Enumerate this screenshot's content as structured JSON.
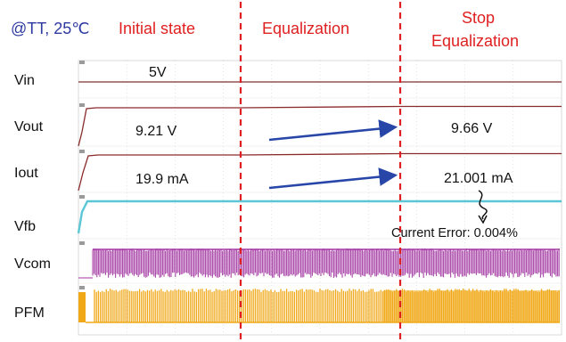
{
  "header": {
    "condition": "@TT, 25℃",
    "phase_initial": "Initial state",
    "phase_equalization": "Equalization",
    "phase_stop_line1": "Stop",
    "phase_stop_line2": "Equalization"
  },
  "channels": [
    {
      "name": "Vin",
      "value_label": "5V",
      "value_label_after": "",
      "color": "#7a3030"
    },
    {
      "name": "Vout",
      "value_label": "9.21 V",
      "value_label_after": "9.66 V",
      "color": "#8a2a2a"
    },
    {
      "name": "Iout",
      "value_label": "19.9 mA",
      "value_label_after": "21.001 mA",
      "color": "#8a2a2a"
    },
    {
      "name": "Vfb",
      "value_label": "",
      "value_label_after": "",
      "color": "#5bc6d6"
    },
    {
      "name": "Vcom",
      "value_label": "",
      "value_label_after": "",
      "color": "#a033a0"
    },
    {
      "name": "PFM",
      "value_label": "",
      "value_label_after": "",
      "color": "#f0a818"
    }
  ],
  "annotation": {
    "current_error": "Current Error: 0.004%"
  },
  "colors": {
    "phase_divider": "#e02020",
    "trend_arrow": "#2845a8",
    "grid": "#cfcfcf"
  },
  "chart_data": {
    "type": "line",
    "title": "",
    "phases": [
      "Initial state",
      "Equalization",
      "Stop Equalization"
    ],
    "series": [
      {
        "name": "Vin",
        "values": [
          5,
          5,
          5
        ],
        "unit": "V"
      },
      {
        "name": "Vout",
        "values": [
          9.21,
          9.66,
          9.66
        ],
        "unit": "V"
      },
      {
        "name": "Iout",
        "values": [
          19.9,
          21.001,
          21.001
        ],
        "unit": "mA"
      }
    ],
    "current_error_percent": 0.004,
    "grid": true
  }
}
